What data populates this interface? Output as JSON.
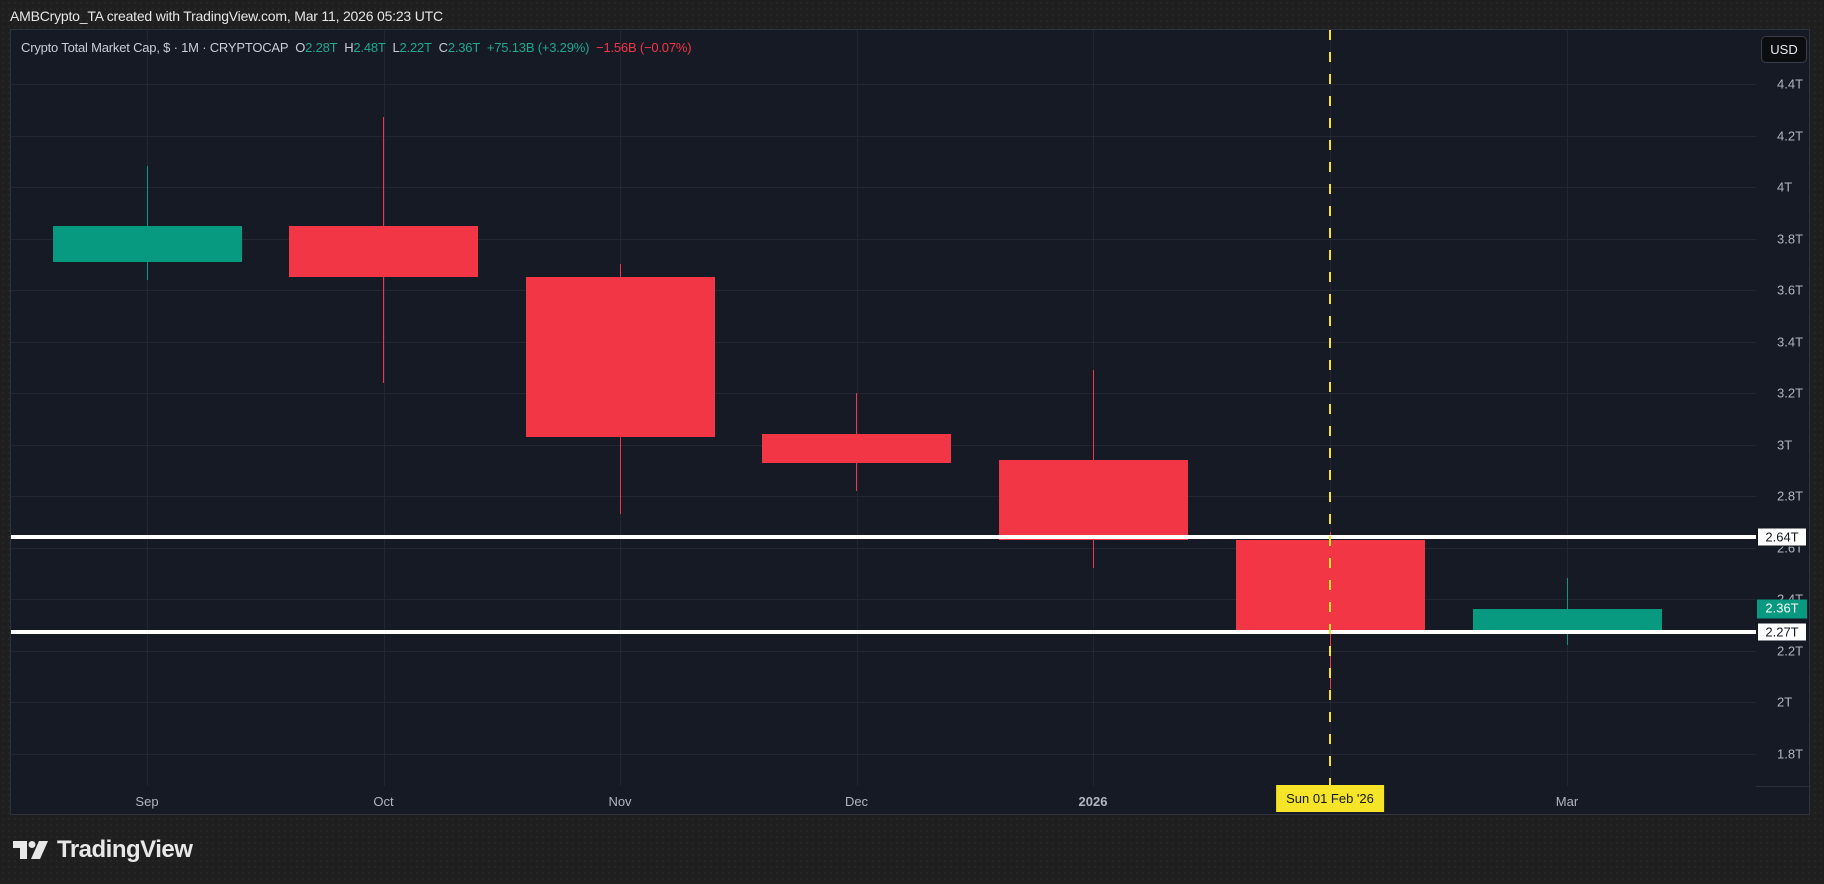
{
  "attribution": "AMBCrypto_TA created with TradingView.com, Mar 11, 2026 05:23 UTC",
  "legend": {
    "symbol": "Crypto Total Market Cap, $ · 1M · CRYPTOCAP",
    "o_label": "O",
    "o_value": "2.28T",
    "h_label": "H",
    "h_value": "2.48T",
    "l_label": "L",
    "l_value": "2.22T",
    "c_label": "C",
    "c_value": "2.36T",
    "change": "+75.13B (+3.29%)",
    "change2": "−1.56B (−0.07%)"
  },
  "currency_button": "USD",
  "colors": {
    "up": "#089981",
    "down": "#f23645",
    "background": "#161a25",
    "grid": "#242733",
    "marker": "#f5e427",
    "level_line": "#ffffff"
  },
  "markers": {
    "date_label": "Sun 01 Feb '26",
    "level_labels": [
      "2.64T",
      "2.27T"
    ],
    "last_price_label": "2.36T"
  },
  "branding": {
    "logo_text": "TradingView"
  },
  "chart_data": {
    "type": "candlestick",
    "title": "Crypto Total Market Cap, $ · 1M · CRYPTOCAP",
    "interval": "1M",
    "unit": "T USD",
    "categories": [
      "Sep",
      "Oct",
      "Nov",
      "Dec",
      "2026",
      "Feb",
      "Mar"
    ],
    "candles": [
      {
        "period": "Sep 2025",
        "open": 3.71,
        "high": 4.08,
        "low": 3.64,
        "close": 3.85
      },
      {
        "period": "Oct 2025",
        "open": 3.85,
        "high": 4.27,
        "low": 3.24,
        "close": 3.65
      },
      {
        "period": "Nov 2025",
        "open": 3.65,
        "high": 3.7,
        "low": 2.73,
        "close": 3.03
      },
      {
        "period": "Dec 2025",
        "open": 3.04,
        "high": 3.2,
        "low": 2.82,
        "close": 2.93
      },
      {
        "period": "Jan 2026",
        "open": 2.94,
        "high": 3.29,
        "low": 2.52,
        "close": 2.63
      },
      {
        "period": "Feb 2026",
        "open": 2.63,
        "high": 2.66,
        "low": 2.05,
        "close": 2.28
      },
      {
        "period": "Mar 2026",
        "open": 2.28,
        "high": 2.48,
        "low": 2.22,
        "close": 2.36
      }
    ],
    "horizontal_levels": [
      2.64,
      2.27
    ],
    "vertical_marker": "Sun 01 Feb '26",
    "last_price": 2.36,
    "yticks": [
      "4.4T",
      "4.2T",
      "4T",
      "3.8T",
      "3.6T",
      "3.4T",
      "3.2T",
      "3T",
      "2.8T",
      "2.6T",
      "2.4T",
      "2.2T",
      "2T",
      "1.8T"
    ],
    "ytick_values": [
      4.4,
      4.2,
      4.0,
      3.8,
      3.6,
      3.4,
      3.2,
      3.0,
      2.8,
      2.6,
      2.4,
      2.2,
      2.0,
      1.8
    ],
    "xticks": [
      "Sep",
      "Oct",
      "Nov",
      "Dec",
      "2026",
      "Mar"
    ],
    "ylim": [
      1.68,
      4.57
    ],
    "grid": true,
    "legend_position": "top-left"
  }
}
